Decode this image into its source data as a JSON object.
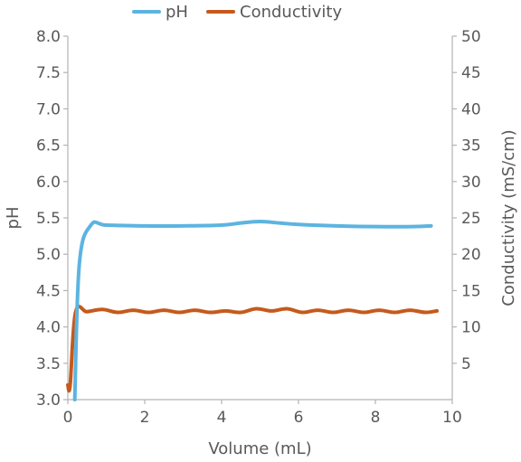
{
  "chart_data": {
    "type": "line",
    "xlabel": "Volume (mL)",
    "ylabel_left": "pH",
    "ylabel_right": "Conductivity (mS/cm)",
    "xlim": [
      0,
      10
    ],
    "ylim_left": [
      3.0,
      8.0
    ],
    "ylim_right": [
      0,
      50
    ],
    "x_ticks": [
      "0",
      "2",
      "4",
      "6",
      "8",
      "10"
    ],
    "y_left_ticks": [
      "3.0",
      "3.5",
      "4.0",
      "4.5",
      "5.0",
      "5.5",
      "6.0",
      "6.5",
      "7.0",
      "7.5",
      "8.0"
    ],
    "y_right_ticks": [
      "5",
      "10",
      "15",
      "20",
      "25",
      "30",
      "35",
      "40",
      "45",
      "50"
    ],
    "grid": false,
    "legend_position": "top-center",
    "series": [
      {
        "name": "pH",
        "axis": "left",
        "color": "#5cb4e0",
        "x": [
          0.18,
          0.3,
          0.6,
          1.0,
          2.0,
          3.0,
          4.0,
          4.5,
          5.0,
          5.5,
          6.0,
          7.0,
          8.0,
          9.0,
          9.45
        ],
        "y": [
          3.0,
          4.87,
          5.4,
          5.4,
          5.39,
          5.39,
          5.4,
          5.43,
          5.45,
          5.43,
          5.41,
          5.39,
          5.38,
          5.38,
          5.39
        ]
      },
      {
        "name": "Conductivity",
        "axis": "right",
        "color": "#c55a1c",
        "x": [
          0.0,
          0.06,
          0.2,
          0.5,
          0.9,
          1.3,
          1.7,
          2.1,
          2.5,
          2.9,
          3.3,
          3.7,
          4.1,
          4.5,
          4.9,
          5.3,
          5.7,
          6.1,
          6.5,
          6.9,
          7.3,
          7.7,
          8.1,
          8.5,
          8.9,
          9.3,
          9.6
        ],
        "y": [
          2.0,
          2.0,
          12.0,
          12.1,
          12.4,
          12.0,
          12.3,
          12.0,
          12.3,
          12.0,
          12.3,
          12.0,
          12.2,
          12.0,
          12.5,
          12.2,
          12.5,
          12.0,
          12.3,
          12.0,
          12.3,
          12.0,
          12.3,
          12.0,
          12.3,
          12.0,
          12.2
        ]
      }
    ]
  }
}
